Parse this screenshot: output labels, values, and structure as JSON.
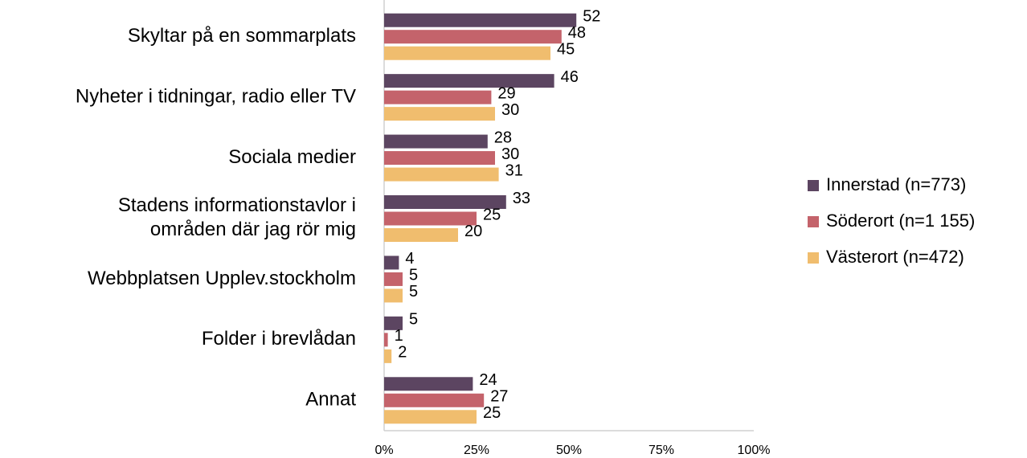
{
  "chart_data": {
    "type": "bar",
    "orientation": "horizontal",
    "categories": [
      "Skyltar på en sommarplats",
      "Nyheter i tidningar, radio eller TV",
      "Sociala medier",
      "Stadens informationstavlor i\nområden där jag rör mig",
      "Webbplatsen Upplev.stockholm",
      "Folder i brevlådan",
      "Annat"
    ],
    "series": [
      {
        "name": "Innerstad (n=773)",
        "color": "#5c4561",
        "values": [
          52,
          46,
          28,
          33,
          4,
          5,
          24
        ]
      },
      {
        "name": "Söderort (n=1 155)",
        "color": "#c4636b",
        "values": [
          48,
          29,
          30,
          25,
          5,
          1,
          27
        ]
      },
      {
        "name": "Västerort (n=472)",
        "color": "#f0bd6e",
        "values": [
          45,
          30,
          31,
          20,
          5,
          2,
          25
        ]
      }
    ],
    "xlim": [
      0,
      100
    ],
    "xticks": [
      {
        "value": 0,
        "label": "0%"
      },
      {
        "value": 25,
        "label": "25%"
      },
      {
        "value": 50,
        "label": "50%"
      },
      {
        "value": 75,
        "label": "75%"
      },
      {
        "value": 100,
        "label": "100%"
      }
    ],
    "legend": "right",
    "grid": false
  }
}
